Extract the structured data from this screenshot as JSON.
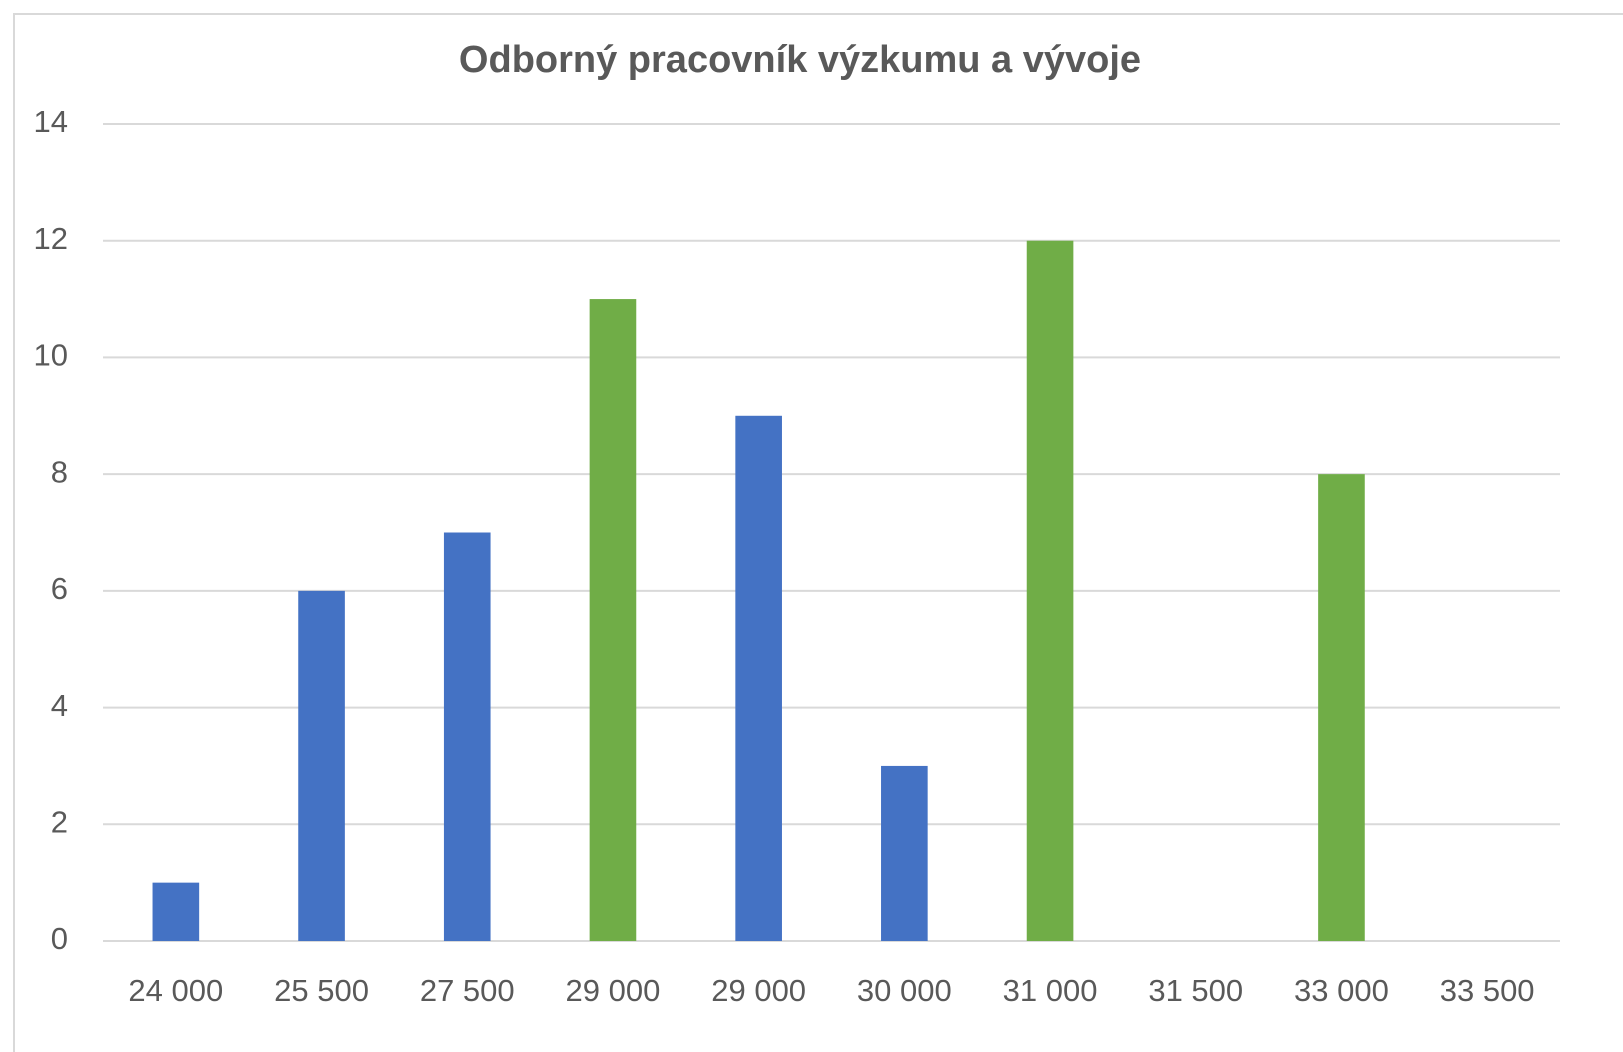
{
  "chart_data": {
    "type": "bar",
    "title": "Odborný pracovník výzkumu a vývoje",
    "categories": [
      "24 000",
      "25 500",
      "27 500",
      "29 000",
      "29 000",
      "30 000",
      "31 000",
      "31 500",
      "33 000",
      "33 500"
    ],
    "values": [
      1,
      6,
      7,
      11,
      9,
      3,
      12,
      0,
      8,
      0
    ],
    "colors": [
      "#4472c4",
      "#4472c4",
      "#4472c4",
      "#70ad47",
      "#4472c4",
      "#4472c4",
      "#70ad47",
      "#4472c4",
      "#70ad47",
      "#4472c4"
    ],
    "ylim": [
      0,
      14
    ],
    "yticks": [
      0,
      2,
      4,
      6,
      8,
      10,
      12,
      14
    ],
    "grid": true
  }
}
